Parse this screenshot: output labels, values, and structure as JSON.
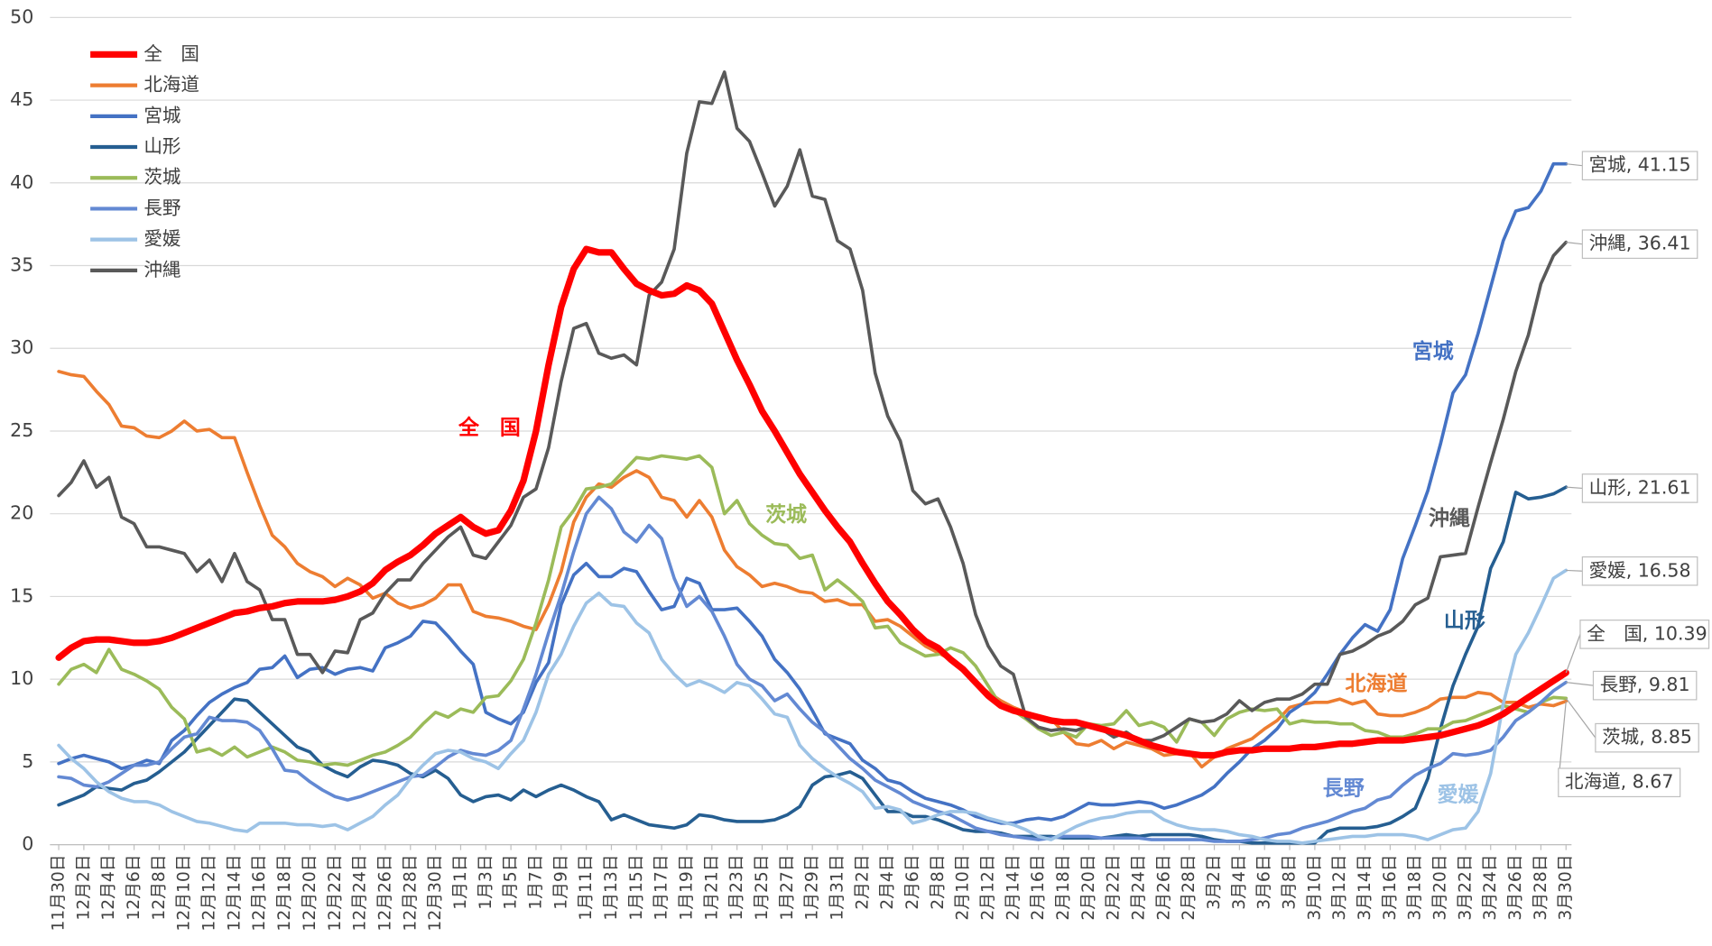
{
  "chart_data": {
    "type": "line",
    "categories": [
      "11月30日",
      null,
      "12月2日",
      null,
      "12月4日",
      null,
      "12月6日",
      null,
      "12月8日",
      null,
      "12月10日",
      null,
      "12月12日",
      null,
      "12月14日",
      null,
      "12月16日",
      null,
      "12月18日",
      null,
      "12月20日",
      null,
      "12月22日",
      null,
      "12月24日",
      null,
      "12月26日",
      null,
      "12月28日",
      null,
      "12月30日",
      null,
      "1月1日",
      null,
      "1月3日",
      null,
      "1月5日",
      null,
      "1月7日",
      null,
      "1月9日",
      null,
      "1月11日",
      null,
      "1月13日",
      null,
      "1月15日",
      null,
      "1月17日",
      null,
      "1月19日",
      null,
      "1月21日",
      null,
      "1月23日",
      null,
      "1月25日",
      null,
      "1月27日",
      null,
      "1月29日",
      null,
      "1月31日",
      null,
      "2月2日",
      null,
      "2月4日",
      null,
      "2月6日",
      null,
      "2月8日",
      null,
      "2月10日",
      null,
      "2月12日",
      null,
      "2月14日",
      null,
      "2月16日",
      null,
      "2月18日",
      null,
      "2月20日",
      null,
      "2月22日",
      null,
      "2月24日",
      null,
      "2月26日",
      null,
      "2月28日",
      null,
      "3月2日",
      null,
      "3月4日",
      null,
      "3月6日",
      null,
      "3月8日",
      null,
      "3月10日",
      null,
      "3月12日",
      null,
      "3月14日",
      null,
      "3月16日",
      null,
      "3月18日",
      null,
      "3月20日",
      null,
      "3月22日",
      null,
      "3月24日",
      null,
      "3月26日",
      null,
      "3月28日",
      null,
      "3月30日"
    ],
    "series": [
      {
        "name": "全　国",
        "color": "#ff0000",
        "end_label": "全　国, 10.39",
        "values": [
          11.3,
          11.9,
          12.3,
          12.4,
          12.4,
          12.3,
          12.2,
          12.2,
          12.3,
          12.5,
          12.8,
          13.1,
          13.4,
          13.7,
          14.0,
          14.1,
          14.3,
          14.4,
          14.6,
          14.7,
          14.7,
          14.7,
          14.8,
          15.0,
          15.3,
          15.8,
          16.6,
          17.1,
          17.5,
          18.1,
          18.8,
          19.3,
          19.8,
          19.2,
          18.8,
          19.0,
          20.2,
          22.0,
          25.0,
          29.0,
          32.5,
          34.8,
          36.0,
          35.8,
          35.8,
          34.8,
          33.9,
          33.5,
          33.2,
          33.3,
          33.8,
          33.5,
          32.7,
          31.0,
          29.3,
          27.8,
          26.2,
          25.0,
          23.7,
          22.4,
          21.3,
          20.2,
          19.2,
          18.3,
          17.0,
          15.8,
          14.7,
          13.9,
          13.0,
          12.3,
          11.9,
          11.2,
          10.6,
          9.8,
          9.0,
          8.4,
          8.1,
          7.9,
          7.7,
          7.5,
          7.4,
          7.4,
          7.2,
          7.0,
          6.8,
          6.6,
          6.3,
          6.0,
          5.8,
          5.6,
          5.5,
          5.4,
          5.4,
          5.6,
          5.7,
          5.7,
          5.8,
          5.8,
          5.8,
          5.9,
          5.9,
          6.0,
          6.1,
          6.1,
          6.2,
          6.3,
          6.3,
          6.3,
          6.4,
          6.5,
          6.6,
          6.8,
          7.0,
          7.2,
          7.5,
          7.9,
          8.4,
          8.9,
          9.4,
          9.9,
          10.39
        ]
      },
      {
        "name": "北海道",
        "color": "#ed7d31",
        "end_label": "北海道, 8.67",
        "values": [
          28.6,
          28.4,
          28.3,
          27.4,
          26.6,
          25.3,
          25.2,
          24.7,
          24.6,
          25.0,
          25.6,
          25.0,
          25.1,
          24.6,
          24.6,
          22.5,
          20.5,
          18.7,
          18.0,
          17.0,
          16.5,
          16.2,
          15.6,
          16.1,
          15.7,
          14.9,
          15.2,
          14.6,
          14.3,
          14.5,
          14.9,
          15.7,
          15.7,
          14.1,
          13.8,
          13.7,
          13.5,
          13.2,
          13.0,
          14.5,
          16.5,
          19.5,
          21.0,
          21.8,
          21.6,
          22.2,
          22.6,
          22.2,
          21.0,
          20.8,
          19.8,
          20.8,
          19.8,
          17.8,
          16.8,
          16.3,
          15.6,
          15.8,
          15.6,
          15.3,
          15.2,
          14.7,
          14.8,
          14.5,
          14.5,
          13.5,
          13.6,
          13.2,
          12.6,
          12.0,
          11.6,
          11.2,
          10.6,
          9.8,
          9.2,
          8.7,
          8.3,
          8.0,
          7.8,
          7.6,
          6.8,
          6.1,
          6.0,
          6.3,
          5.8,
          6.2,
          6.0,
          5.8,
          5.4,
          5.5,
          5.6,
          4.7,
          5.3,
          5.8,
          6.1,
          6.4,
          7.0,
          7.5,
          8.3,
          8.5,
          8.6,
          8.6,
          8.8,
          8.5,
          8.7,
          7.9,
          7.8,
          7.8,
          8.0,
          8.3,
          8.8,
          8.9,
          8.9,
          9.2,
          9.1,
          8.6,
          8.6,
          8.3,
          8.5,
          8.4,
          8.67
        ]
      },
      {
        "name": "宮城",
        "color": "#4472c4",
        "end_label": "宮城, 41.15",
        "values": [
          4.9,
          5.2,
          5.4,
          5.2,
          5.0,
          4.6,
          4.8,
          5.1,
          4.9,
          6.3,
          6.9,
          7.8,
          8.6,
          9.1,
          9.5,
          9.8,
          10.6,
          10.7,
          11.4,
          10.1,
          10.6,
          10.7,
          10.3,
          10.6,
          10.7,
          10.5,
          11.9,
          12.2,
          12.6,
          13.5,
          13.4,
          12.6,
          11.7,
          10.9,
          8.0,
          7.6,
          7.3,
          8.0,
          9.8,
          11.0,
          14.5,
          16.3,
          17.0,
          16.2,
          16.2,
          16.7,
          16.5,
          15.3,
          14.2,
          14.4,
          16.1,
          15.8,
          14.2,
          14.2,
          14.3,
          13.5,
          12.6,
          11.2,
          10.4,
          9.4,
          8.1,
          6.7,
          6.4,
          6.1,
          5.1,
          4.6,
          3.9,
          3.7,
          3.2,
          2.8,
          2.6,
          2.4,
          2.1,
          1.7,
          1.5,
          1.3,
          1.3,
          1.5,
          1.6,
          1.5,
          1.7,
          2.1,
          2.5,
          2.4,
          2.4,
          2.5,
          2.6,
          2.5,
          2.2,
          2.4,
          2.7,
          3.0,
          3.5,
          4.3,
          5.0,
          5.8,
          6.3,
          7.0,
          8.0,
          8.5,
          9.2,
          10.3,
          11.5,
          12.5,
          13.3,
          12.9,
          14.2,
          17.3,
          19.3,
          21.4,
          24.2,
          27.3,
          28.4,
          30.9,
          33.7,
          36.5,
          38.3,
          38.5,
          39.5,
          41.15,
          41.15
        ]
      },
      {
        "name": "山形",
        "color": "#255e91",
        "end_label": "山形, 21.61",
        "values": [
          2.4,
          2.7,
          3.0,
          3.5,
          3.4,
          3.3,
          3.7,
          3.9,
          4.4,
          5.0,
          5.6,
          6.4,
          7.2,
          8.0,
          8.8,
          8.7,
          8.0,
          7.3,
          6.6,
          5.9,
          5.6,
          4.8,
          4.4,
          4.1,
          4.7,
          5.1,
          5.0,
          4.8,
          4.3,
          4.1,
          4.5,
          4.0,
          3.0,
          2.6,
          2.9,
          3.0,
          2.7,
          3.3,
          2.9,
          3.3,
          3.6,
          3.3,
          2.9,
          2.6,
          1.5,
          1.8,
          1.5,
          1.2,
          1.1,
          1.0,
          1.2,
          1.8,
          1.7,
          1.5,
          1.4,
          1.4,
          1.4,
          1.5,
          1.8,
          2.3,
          3.6,
          4.1,
          4.2,
          4.4,
          4.0,
          3.0,
          2.0,
          2.0,
          1.7,
          1.7,
          1.5,
          1.2,
          0.9,
          0.8,
          0.8,
          0.7,
          0.5,
          0.5,
          0.5,
          0.5,
          0.4,
          0.4,
          0.4,
          0.4,
          0.5,
          0.6,
          0.5,
          0.6,
          0.6,
          0.6,
          0.6,
          0.5,
          0.3,
          0.2,
          0.2,
          0.1,
          0.1,
          0.1,
          0.1,
          0.1,
          0.1,
          0.8,
          1.0,
          1.0,
          1.0,
          1.1,
          1.3,
          1.7,
          2.2,
          4.0,
          7.0,
          9.6,
          11.5,
          13.2,
          16.7,
          18.3,
          21.3,
          20.9,
          21.0,
          21.2,
          21.61
        ]
      },
      {
        "name": "茨城",
        "color": "#9bbb59",
        "end_label": "茨城, 8.85",
        "values": [
          9.7,
          10.6,
          10.9,
          10.4,
          11.8,
          10.6,
          10.3,
          9.9,
          9.4,
          8.3,
          7.6,
          5.6,
          5.8,
          5.4,
          5.9,
          5.3,
          5.6,
          5.9,
          5.6,
          5.1,
          5.0,
          4.8,
          4.9,
          4.8,
          5.1,
          5.4,
          5.6,
          6.0,
          6.5,
          7.3,
          8.0,
          7.7,
          8.2,
          8.0,
          8.9,
          9.0,
          9.9,
          11.2,
          13.4,
          16.0,
          19.2,
          20.2,
          21.5,
          21.6,
          21.8,
          22.6,
          23.4,
          23.3,
          23.5,
          23.4,
          23.3,
          23.5,
          22.8,
          20.0,
          20.8,
          19.4,
          18.7,
          18.2,
          18.1,
          17.3,
          17.5,
          15.4,
          16.0,
          15.4,
          14.7,
          13.1,
          13.2,
          12.2,
          11.8,
          11.4,
          11.5,
          11.9,
          11.6,
          10.8,
          9.6,
          8.4,
          8.1,
          7.6,
          7.0,
          6.6,
          6.8,
          6.5,
          7.3,
          7.2,
          7.3,
          8.1,
          7.2,
          7.4,
          7.1,
          6.2,
          7.6,
          7.4,
          6.6,
          7.6,
          8.0,
          8.2,
          8.1,
          8.2,
          7.3,
          7.5,
          7.4,
          7.4,
          7.3,
          7.3,
          6.9,
          6.8,
          6.5,
          6.5,
          6.7,
          7.0,
          7.0,
          7.4,
          7.5,
          7.8,
          8.1,
          8.4,
          8.2,
          8.0,
          8.6,
          8.9,
          8.85
        ]
      },
      {
        "name": "長野",
        "color": "#6389d3",
        "end_label": "長野, 9.81",
        "values": [
          4.1,
          4.0,
          3.6,
          3.5,
          3.8,
          4.3,
          4.8,
          4.8,
          5.0,
          5.8,
          6.5,
          6.7,
          7.7,
          7.5,
          7.5,
          7.4,
          6.9,
          5.8,
          4.5,
          4.4,
          3.8,
          3.3,
          2.9,
          2.7,
          2.9,
          3.2,
          3.5,
          3.8,
          4.1,
          4.2,
          4.7,
          5.3,
          5.7,
          5.5,
          5.4,
          5.7,
          6.3,
          8.2,
          10.3,
          12.8,
          15.1,
          17.7,
          20.0,
          21.0,
          20.3,
          18.9,
          18.3,
          19.3,
          18.5,
          16.1,
          14.4,
          15.0,
          14.1,
          12.6,
          10.9,
          10.0,
          9.6,
          8.7,
          9.1,
          8.2,
          7.4,
          6.8,
          6.0,
          5.2,
          4.6,
          3.9,
          3.5,
          3.1,
          2.6,
          2.3,
          2.0,
          1.8,
          1.4,
          1.0,
          0.8,
          0.6,
          0.5,
          0.4,
          0.3,
          0.4,
          0.5,
          0.5,
          0.5,
          0.4,
          0.4,
          0.4,
          0.4,
          0.3,
          0.3,
          0.3,
          0.3,
          0.3,
          0.2,
          0.2,
          0.2,
          0.3,
          0.4,
          0.6,
          0.7,
          1.0,
          1.2,
          1.4,
          1.7,
          2.0,
          2.2,
          2.7,
          2.9,
          3.6,
          4.2,
          4.6,
          4.9,
          5.5,
          5.4,
          5.5,
          5.7,
          6.5,
          7.5,
          8.0,
          8.6,
          9.3,
          9.81
        ]
      },
      {
        "name": "愛媛",
        "color": "#9dc3e6",
        "end_label": "愛媛, 16.58",
        "values": [
          6.0,
          5.2,
          4.6,
          3.8,
          3.2,
          2.8,
          2.6,
          2.6,
          2.4,
          2.0,
          1.7,
          1.4,
          1.3,
          1.1,
          0.9,
          0.8,
          1.3,
          1.3,
          1.3,
          1.2,
          1.2,
          1.1,
          1.2,
          0.9,
          1.3,
          1.7,
          2.4,
          3.0,
          4.0,
          4.8,
          5.5,
          5.7,
          5.6,
          5.2,
          5.0,
          4.6,
          5.5,
          6.3,
          8.0,
          10.3,
          11.5,
          13.2,
          14.6,
          15.2,
          14.5,
          14.4,
          13.4,
          12.8,
          11.2,
          10.3,
          9.6,
          9.9,
          9.6,
          9.2,
          9.8,
          9.6,
          8.8,
          7.9,
          7.7,
          6.0,
          5.2,
          4.6,
          4.1,
          3.7,
          3.2,
          2.2,
          2.3,
          2.1,
          1.3,
          1.5,
          1.8,
          2.0,
          2.0,
          1.9,
          1.6,
          1.4,
          1.2,
          0.9,
          0.5,
          0.3,
          0.7,
          1.1,
          1.4,
          1.6,
          1.7,
          1.9,
          2.0,
          2.0,
          1.5,
          1.2,
          1.0,
          0.9,
          0.9,
          0.8,
          0.6,
          0.5,
          0.3,
          0.2,
          0.2,
          0.1,
          0.2,
          0.3,
          0.4,
          0.5,
          0.5,
          0.6,
          0.6,
          0.6,
          0.5,
          0.3,
          0.6,
          0.9,
          1.0,
          2.0,
          4.3,
          8.5,
          11.5,
          12.8,
          14.4,
          16.1,
          16.58
        ]
      },
      {
        "name": "沖縄",
        "color": "#595959",
        "end_label": "沖縄, 36.41",
        "values": [
          21.1,
          21.9,
          23.2,
          21.6,
          22.2,
          19.8,
          19.4,
          18.0,
          18.0,
          17.8,
          17.6,
          16.5,
          17.2,
          15.9,
          17.6,
          15.9,
          15.4,
          13.6,
          13.6,
          11.5,
          11.5,
          10.4,
          11.7,
          11.6,
          13.6,
          14.0,
          15.2,
          16.0,
          16.0,
          17.0,
          17.8,
          18.6,
          19.2,
          17.5,
          17.3,
          18.3,
          19.3,
          21.0,
          21.5,
          24.0,
          28.0,
          31.2,
          31.5,
          29.7,
          29.4,
          29.6,
          29.0,
          33.2,
          34.0,
          36.0,
          41.8,
          44.9,
          44.8,
          46.7,
          43.3,
          42.5,
          40.6,
          38.6,
          39.8,
          42.0,
          39.2,
          39.0,
          36.5,
          36.0,
          33.5,
          28.5,
          25.9,
          24.4,
          21.4,
          20.6,
          20.9,
          19.2,
          17.0,
          13.9,
          12.0,
          10.8,
          10.3,
          7.7,
          7.1,
          6.9,
          7.0,
          6.9,
          7.2,
          7.0,
          6.5,
          6.8,
          6.3,
          6.3,
          6.6,
          7.1,
          7.6,
          7.4,
          7.5,
          7.9,
          8.7,
          8.1,
          8.6,
          8.8,
          8.8,
          9.1,
          9.7,
          9.7,
          11.5,
          11.7,
          12.1,
          12.6,
          12.9,
          13.5,
          14.5,
          14.9,
          17.4,
          17.5,
          17.6,
          20.4,
          23.1,
          25.7,
          28.6,
          30.8,
          33.9,
          35.6,
          36.41
        ]
      }
    ],
    "ylim": [
      0,
      50
    ],
    "yticks": [
      0,
      5,
      10,
      15,
      20,
      25,
      30,
      35,
      40,
      45,
      50
    ],
    "grid": true,
    "legend": "upper left"
  }
}
